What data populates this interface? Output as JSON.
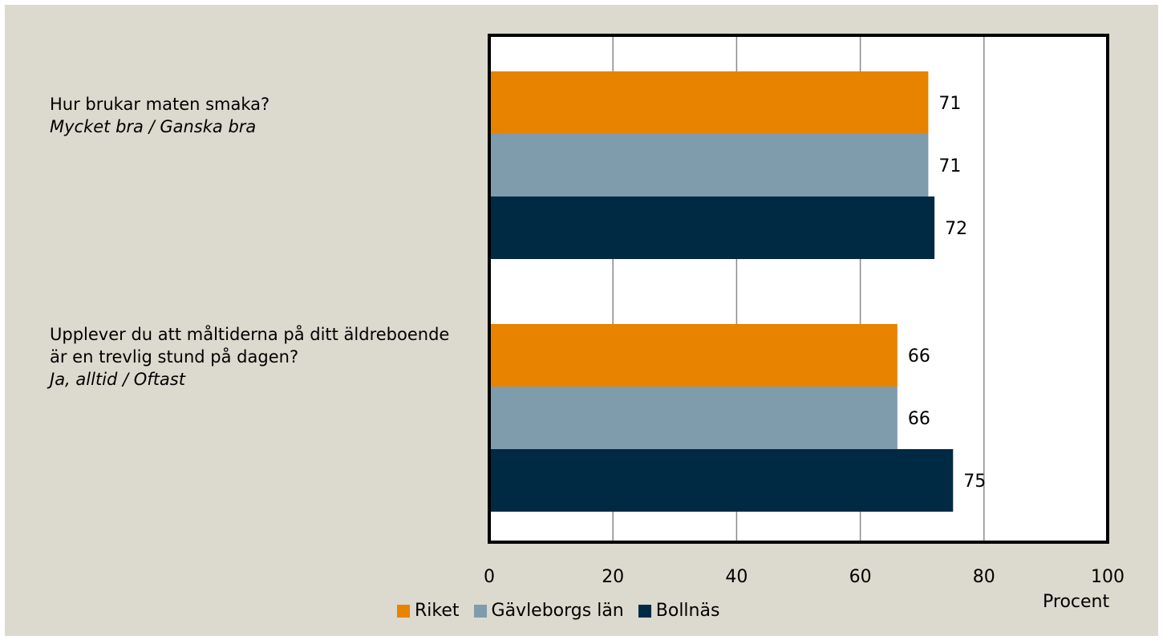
{
  "chart_data": {
    "type": "bar",
    "orientation": "horizontal",
    "categories": [
      {
        "question": "Hur brukar maten smaka?",
        "answer": "Mycket bra / Ganska bra"
      },
      {
        "question": "Upplever du att måltiderna på ditt äldreboende är en trevlig stund på dagen?",
        "answer": "Ja, alltid / Oftast"
      }
    ],
    "series": [
      {
        "name": "Riket",
        "color": "#e88300",
        "values": [
          71,
          66
        ]
      },
      {
        "name": "Gävleborgs län",
        "color": "#7f9cad",
        "values": [
          71,
          66
        ]
      },
      {
        "name": "Bollnäs",
        "color": "#002a44",
        "values": [
          72,
          75
        ]
      }
    ],
    "xlim": [
      0,
      100
    ],
    "xticks": [
      0,
      20,
      40,
      60,
      80,
      100
    ],
    "xlabel": "Procent",
    "grid": "vertical",
    "legend": "bottom"
  }
}
